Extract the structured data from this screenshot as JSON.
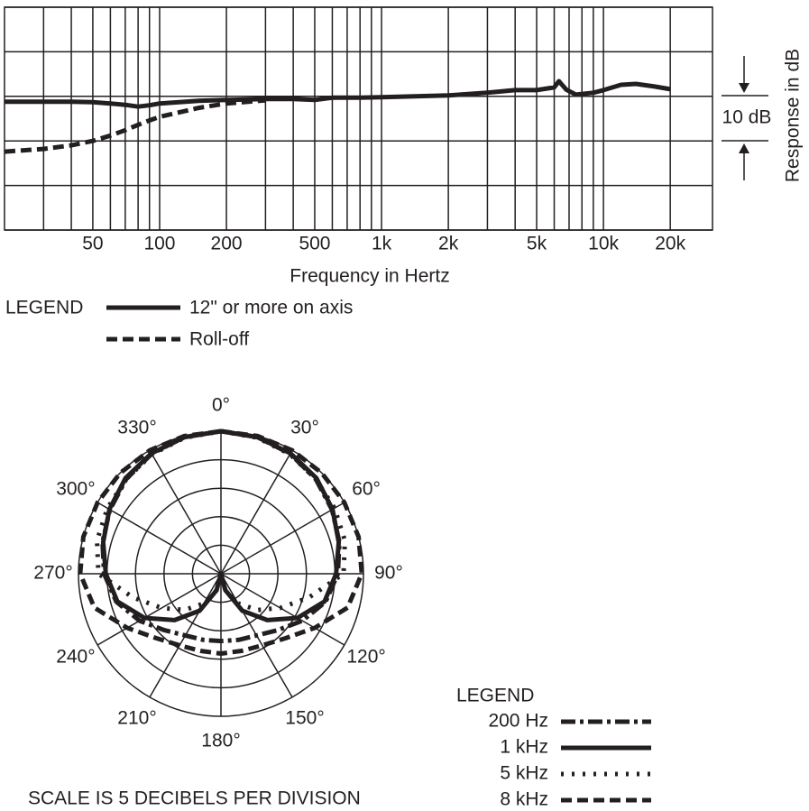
{
  "chart_data": [
    {
      "type": "line",
      "x_label": "Frequency in Hertz",
      "y_label": "Response in dB",
      "log_x": true,
      "grid": true,
      "annotation": "10 dB",
      "legend_title": "LEGEND",
      "xlim": [
        20,
        31000
      ],
      "ylim": [
        -30,
        20
      ],
      "xticks": [
        50,
        100,
        200,
        500,
        {
          "value": 1000,
          "label": "1k"
        },
        {
          "value": 2000,
          "label": "2k"
        },
        {
          "value": 5000,
          "label": "5k"
        },
        {
          "value": 10000,
          "label": "10k"
        },
        {
          "value": 20000,
          "label": "20k"
        }
      ],
      "xgrid": [
        30,
        40,
        60,
        70,
        80,
        90,
        300,
        400,
        600,
        700,
        800,
        900,
        3000,
        4000,
        6000,
        7000,
        8000,
        9000
      ],
      "yticks": [
        -30,
        -20,
        -10,
        0,
        10,
        20
      ],
      "x": [
        20,
        30,
        40,
        50,
        60,
        70,
        80,
        90,
        100,
        150,
        200,
        300,
        400,
        500,
        600,
        800,
        1000,
        2000,
        3000,
        4000,
        5000,
        6000,
        6300,
        6800,
        7500,
        9000,
        10000,
        12000,
        14000,
        17000,
        20000
      ],
      "series": [
        {
          "name": "12\" or more on axis",
          "color": "#231f20",
          "line_style": "solid",
          "values": [
            -1.2,
            -1.2,
            -1.2,
            -1.3,
            -1.6,
            -1.9,
            -2.3,
            -2.0,
            -1.6,
            -1.0,
            -0.8,
            -0.6,
            -0.6,
            -0.8,
            -0.3,
            -0.3,
            -0.2,
            0.2,
            0.8,
            1.4,
            1.4,
            2.0,
            3.4,
            1.5,
            0.4,
            0.8,
            1.4,
            2.6,
            2.8,
            2.2,
            1.6
          ]
        },
        {
          "name": "Roll-off",
          "color": "#231f20",
          "line_style": "dashed",
          "values": [
            -12.4,
            -11.8,
            -11,
            -10,
            -8.8,
            -7.6,
            -6.4,
            -5.4,
            -4.6,
            -2.6,
            -1.6,
            -0.9,
            null,
            null,
            null,
            null,
            null,
            null,
            null,
            null,
            null,
            null,
            null,
            null,
            null,
            null,
            null,
            null,
            null,
            null,
            null
          ]
        }
      ]
    },
    {
      "type": "polar",
      "caption": "SCALE IS 5 DECIBELS PER DIVISION",
      "legend_title": "LEGEND",
      "grid": true,
      "rlim": [
        -25,
        0
      ],
      "rticks": [
        -20,
        -15,
        -10,
        -5,
        0
      ],
      "thetaticks": [
        {
          "value": 0,
          "label": "0°"
        },
        {
          "value": 30,
          "label": "30°"
        },
        {
          "value": 60,
          "label": "60°"
        },
        {
          "value": 90,
          "label": "90°"
        },
        {
          "value": 120,
          "label": "120°"
        },
        {
          "value": 150,
          "label": "150°"
        },
        {
          "value": 180,
          "label": "180°"
        },
        {
          "value": 210,
          "label": "210°"
        },
        {
          "value": 240,
          "label": "240°"
        },
        {
          "value": 270,
          "label": "270°"
        },
        {
          "value": 300,
          "label": "300°"
        },
        {
          "value": 330,
          "label": "330°"
        }
      ],
      "theta": [
        0,
        15,
        30,
        45,
        60,
        75,
        90,
        105,
        120,
        135,
        150,
        165,
        180,
        195,
        210,
        225,
        240,
        255,
        270,
        285,
        300,
        315,
        330,
        345
      ],
      "series": [
        {
          "name": "200 Hz",
          "color": "#231f20",
          "line_style": "dashdot",
          "values": [
            0,
            -0.2,
            -0.7,
            -1.5,
            -2.5,
            -3.5,
            -4.5,
            -6,
            -8.5,
            -11,
            -12.5,
            -13,
            -13.2,
            -13,
            -12.5,
            -11,
            -8.5,
            -6,
            -4.5,
            -3.5,
            -2.5,
            -1.5,
            -0.7,
            -0.2
          ]
        },
        {
          "name": "1 kHz",
          "color": "#231f20",
          "line_style": "solid",
          "values": [
            0,
            -0.2,
            -0.6,
            -1.3,
            -2.4,
            -3.6,
            -4.8,
            -6.2,
            -9.5,
            -13.5,
            -17.5,
            -22,
            -25,
            -22,
            -17.5,
            -13.5,
            -9.5,
            -6.2,
            -4.8,
            -3.6,
            -2.4,
            -1.3,
            -0.6,
            -0.2
          ]
        },
        {
          "name": "5 kHz",
          "color": "#231f20",
          "line_style": "dotted",
          "values": [
            0,
            -0.3,
            -0.8,
            -1.5,
            -2,
            -2.5,
            -3.5,
            -9,
            -13,
            -16,
            -19,
            -22,
            -25,
            -22,
            -19,
            -16,
            -13,
            -9,
            -3.5,
            -2.5,
            -2,
            -1.5,
            -0.8,
            -0.3
          ]
        },
        {
          "name": "8 kHz",
          "color": "#231f20",
          "line_style": "dashed",
          "values": [
            0,
            0,
            0,
            0,
            0,
            0,
            -0.3,
            -2,
            -6,
            -9,
            -10.5,
            -11,
            -11,
            -11,
            -10.5,
            -9,
            -6,
            -2,
            -0.3,
            0,
            0,
            0,
            0,
            0
          ]
        }
      ]
    }
  ]
}
